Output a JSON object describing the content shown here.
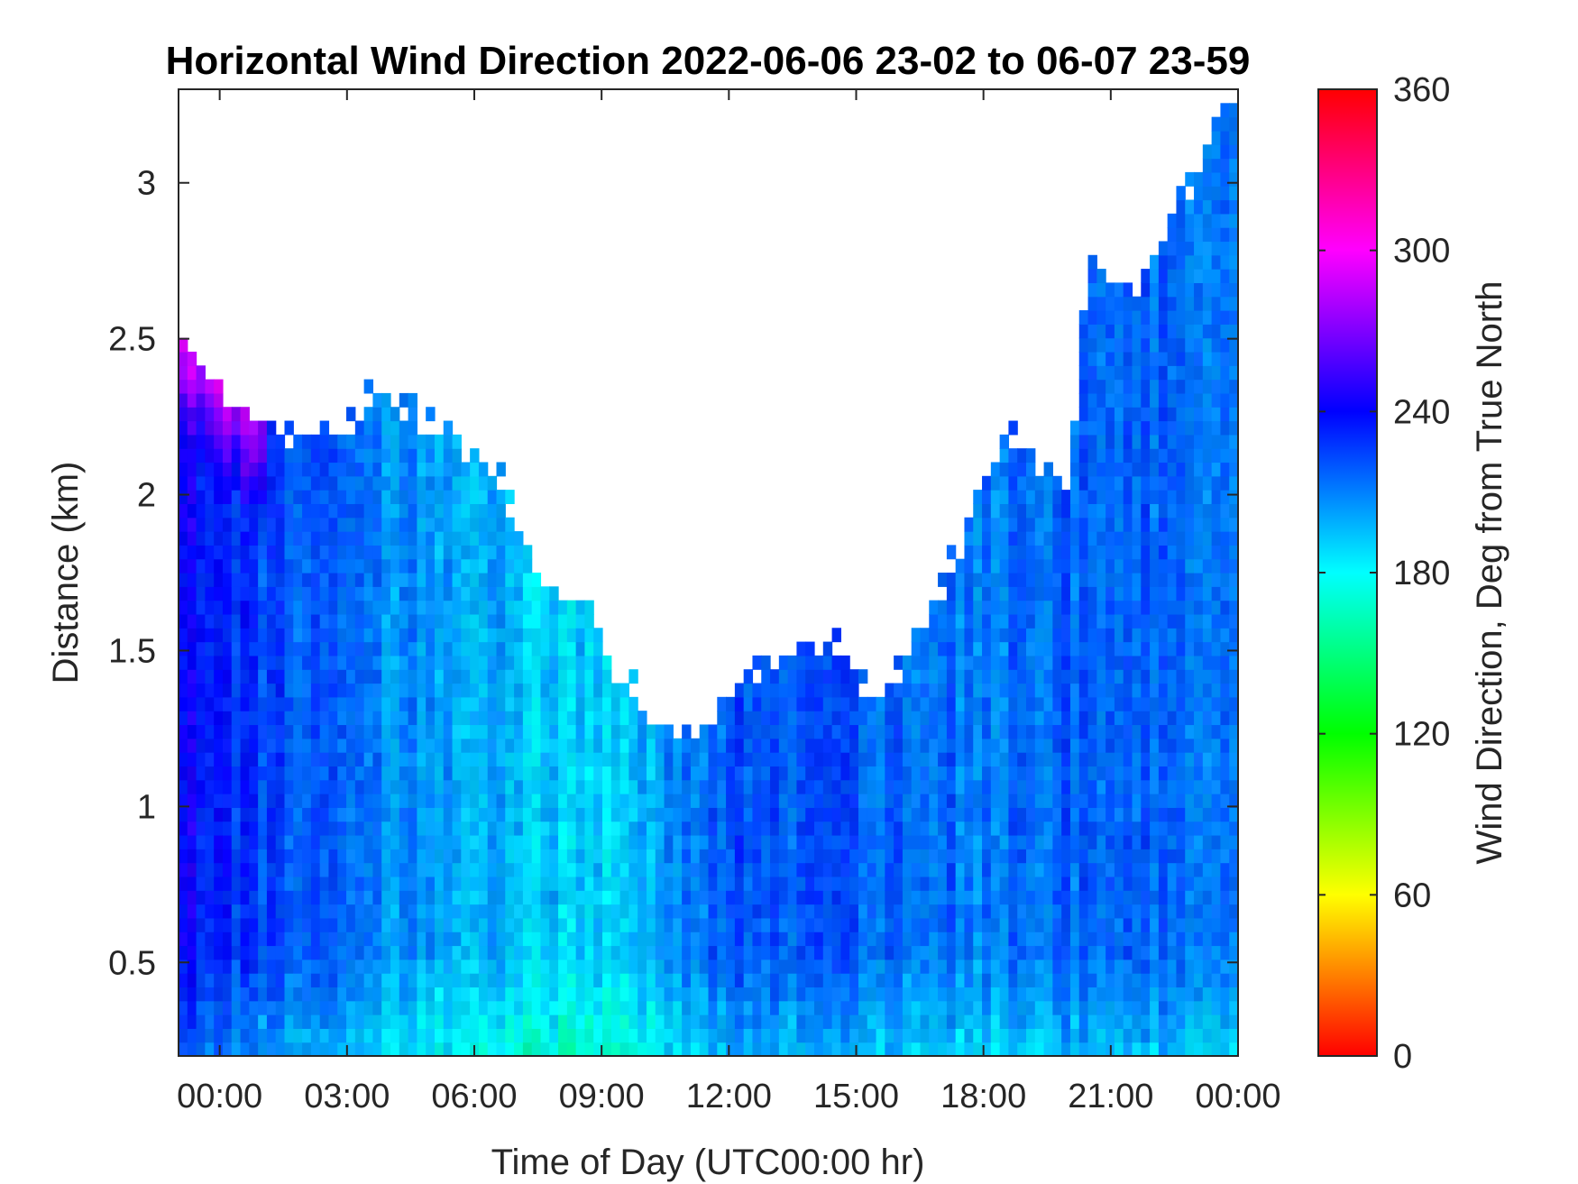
{
  "chart_data": {
    "type": "heatmap",
    "title": "Horizontal Wind Direction 2022-06-06 23-02 to 06-07 23-59",
    "xlabel": "Time of Day (UTC00:00 hr)",
    "ylabel": "Distance (km)",
    "colorbar_label": "Wind Direction, Deg from True North",
    "x_tick_labels": [
      "00:00",
      "03:00",
      "06:00",
      "09:00",
      "12:00",
      "15:00",
      "18:00",
      "21:00",
      "00:00"
    ],
    "x_tick_hours": [
      0,
      3,
      6,
      9,
      12,
      15,
      18,
      21,
      24
    ],
    "xlim_hours": [
      -0.97,
      24.0
    ],
    "y_tick_labels": [
      "0.5",
      "1",
      "1.5",
      "2",
      "2.5",
      "3"
    ],
    "y_ticks": [
      0.5,
      1,
      1.5,
      2,
      2.5,
      3
    ],
    "ylim": [
      0.2,
      3.3
    ],
    "colorbar_ticks": [
      0,
      60,
      120,
      180,
      240,
      300,
      360
    ],
    "colorbar_tick_labels": [
      "0",
      "60",
      "120",
      "180",
      "240",
      "300",
      "360"
    ],
    "clim": [
      0,
      360
    ],
    "colormap": "hsv (red-yellow-green-cyan-blue-magenta-red)",
    "data_top_km_by_hour": [
      {
        "hour": -0.97,
        "top_km": 2.55
      },
      {
        "hour": 0.0,
        "top_km": 2.35
      },
      {
        "hour": 1.0,
        "top_km": 2.22
      },
      {
        "hour": 2.0,
        "top_km": 2.18
      },
      {
        "hour": 4.0,
        "top_km": 2.33
      },
      {
        "hour": 5.5,
        "top_km": 2.18
      },
      {
        "hour": 6.5,
        "top_km": 2.1
      },
      {
        "hour": 7.5,
        "top_km": 1.7
      },
      {
        "hour": 8.5,
        "top_km": 1.65
      },
      {
        "hour": 9.5,
        "top_km": 1.4
      },
      {
        "hour": 11.0,
        "top_km": 1.2
      },
      {
        "hour": 12.5,
        "top_km": 1.45
      },
      {
        "hour": 14.5,
        "top_km": 1.55
      },
      {
        "hour": 15.5,
        "top_km": 1.3
      },
      {
        "hour": 17.0,
        "top_km": 1.7
      },
      {
        "hour": 18.5,
        "top_km": 2.2
      },
      {
        "hour": 20.0,
        "top_km": 2.0
      },
      {
        "hour": 20.5,
        "top_km": 2.8
      },
      {
        "hour": 21.5,
        "top_km": 2.6
      },
      {
        "hour": 22.5,
        "top_km": 2.9
      },
      {
        "hour": 24.0,
        "top_km": 3.3
      }
    ],
    "dominant_direction_deg_by_hour": [
      {
        "hour": -0.97,
        "deg": 238
      },
      {
        "hour": 1.0,
        "deg": 225
      },
      {
        "hour": 4.0,
        "deg": 208
      },
      {
        "hour": 7.0,
        "deg": 195
      },
      {
        "hour": 9.0,
        "deg": 188
      },
      {
        "hour": 12.0,
        "deg": 222
      },
      {
        "hour": 15.0,
        "deg": 218
      },
      {
        "hour": 18.0,
        "deg": 212
      },
      {
        "hour": 21.0,
        "deg": 220
      },
      {
        "hour": 24.0,
        "deg": 215
      }
    ]
  }
}
